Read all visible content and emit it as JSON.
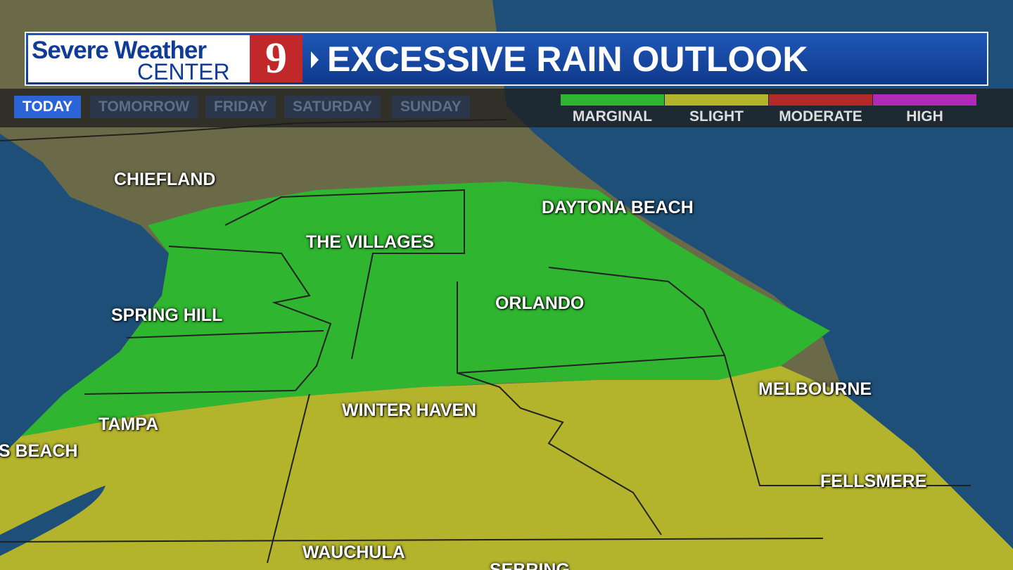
{
  "header": {
    "brand_line1": "Severe Weather",
    "brand_line2": "CENTER",
    "channel": "9",
    "title": "EXCESSIVE RAIN OUTLOOK"
  },
  "tabs": [
    "TODAY",
    "TOMORROW",
    "FRIDAY",
    "SATURDAY",
    "SUNDAY"
  ],
  "legend": [
    {
      "label": "MARGINAL",
      "color": "#2fb52f"
    },
    {
      "label": "SLIGHT",
      "color": "#b3b32c"
    },
    {
      "label": "MODERATE",
      "color": "#b32a2a"
    },
    {
      "label": "HIGH",
      "color": "#b02ab8"
    }
  ],
  "cities": [
    "CHIEFLAND",
    "DAYTONA BEACH",
    "THE VILLAGES",
    "ORLANDO",
    "SPRING HILL",
    "MELBOURNE",
    "TAMPA",
    "WINTER HAVEN",
    "S BEACH",
    "FELLSMERE",
    "WAUCHULA",
    "SEBRING"
  ]
}
